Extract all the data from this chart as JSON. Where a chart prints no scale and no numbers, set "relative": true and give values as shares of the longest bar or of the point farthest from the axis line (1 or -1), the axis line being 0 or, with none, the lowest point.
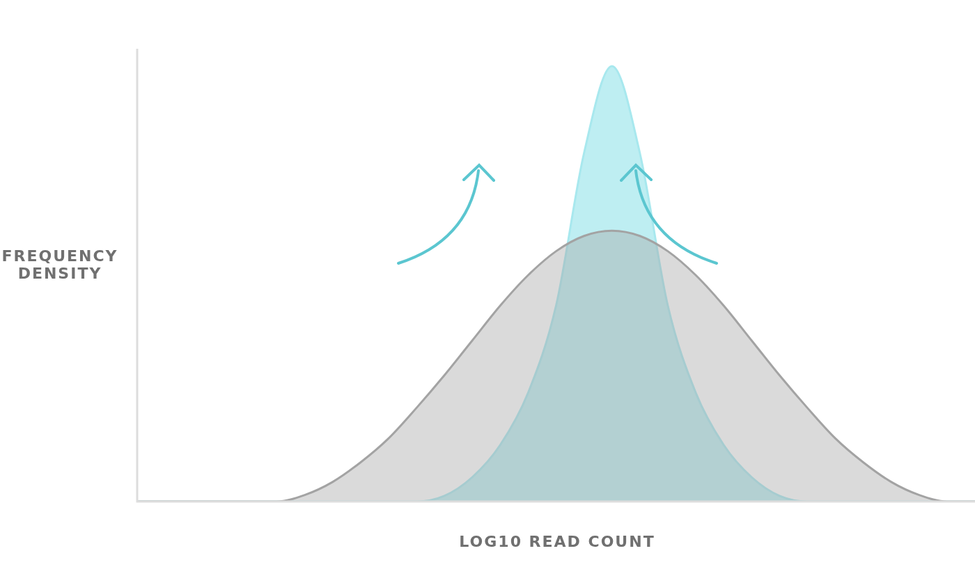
{
  "chart_data": {
    "type": "area",
    "xlabel": "LOG10 READ COUNT",
    "ylabel": "FREQUENCY DENSITY",
    "relative": true,
    "legend": false,
    "categories": [
      null,
      null,
      null,
      null,
      null,
      null,
      null,
      null,
      null,
      null,
      null,
      null,
      null,
      null,
      null,
      null,
      null,
      null,
      null,
      null,
      null,
      null,
      null,
      null,
      null,
      null,
      null,
      null,
      null,
      null,
      null
    ],
    "series": [
      {
        "color": "#a3a3a3",
        "values": [
          0,
          0,
          0,
          0,
          0,
          0,
          0.015,
          0.045,
          0.09,
          0.145,
          0.215,
          0.29,
          0.37,
          0.45,
          0.52,
          0.575,
          0.61,
          0.622,
          0.61,
          0.575,
          0.52,
          0.45,
          0.37,
          0.29,
          0.215,
          0.145,
          0.09,
          0.045,
          0.015,
          0,
          0
        ]
      },
      {
        "color": "#a8e8ee",
        "values": [
          0,
          0,
          0,
          0,
          0,
          0,
          0,
          0,
          0,
          0,
          0,
          0.013,
          0.056,
          0.13,
          0.25,
          0.45,
          0.8,
          1,
          0.8,
          0.45,
          0.25,
          0.13,
          0.056,
          0.013,
          0,
          0,
          0,
          0,
          0,
          0,
          0
        ]
      }
    ]
  }
}
